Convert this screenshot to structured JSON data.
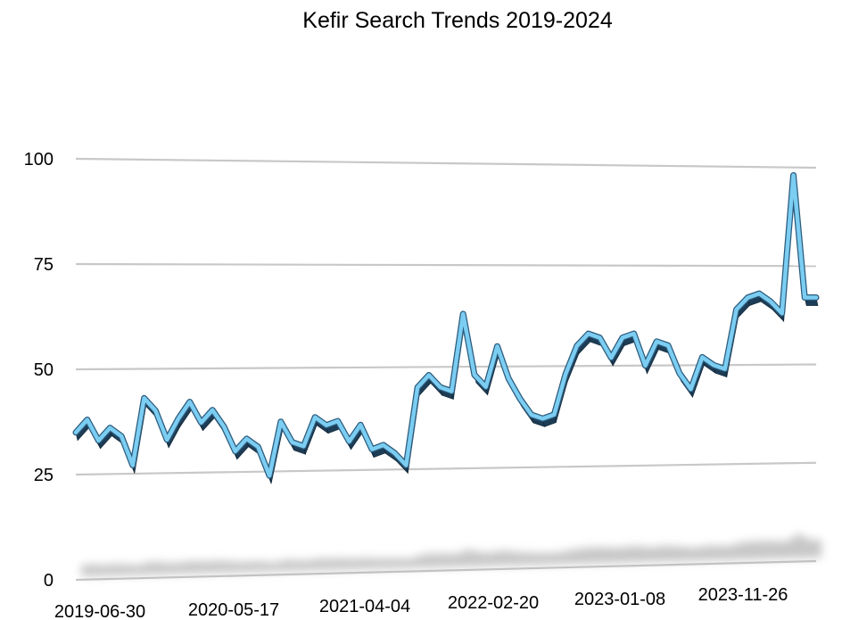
{
  "chart_data": {
    "type": "line",
    "title": "Kefir Search Trends 2019-2024",
    "xlabel": "",
    "ylabel": "",
    "x_tick_labels": [
      "2019-06-30",
      "2020-05-17",
      "2021-04-04",
      "2022-02-20",
      "2023-01-08",
      "2023-11-26"
    ],
    "y_tick_labels": [
      "0",
      "25",
      "50",
      "75",
      "100"
    ],
    "y_ticks": [
      0,
      25,
      50,
      75,
      100
    ],
    "ylim": [
      0,
      100
    ],
    "xlim": [
      "2019-06-30",
      "2024-06-23"
    ],
    "grid": true,
    "legend": "none",
    "style": "3d-ribbon",
    "series_color": "#7ccdf2",
    "series_side_color": "#1d3c55",
    "series": [
      {
        "x": [
          "2019-06-30",
          "2019-07-28",
          "2019-08-25",
          "2019-09-22",
          "2019-10-20",
          "2019-11-17",
          "2019-12-15",
          "2020-01-12",
          "2020-02-09",
          "2020-03-08",
          "2020-04-05",
          "2020-05-03",
          "2020-05-31",
          "2020-06-28",
          "2020-07-26",
          "2020-08-23",
          "2020-09-20",
          "2020-10-18",
          "2020-11-15",
          "2020-12-13",
          "2021-01-10",
          "2021-02-07",
          "2021-03-07",
          "2021-04-04",
          "2021-05-02",
          "2021-05-30",
          "2021-06-27",
          "2021-07-25",
          "2021-08-22",
          "2021-09-19",
          "2021-10-17",
          "2021-11-14",
          "2021-12-12",
          "2022-01-09",
          "2022-02-06",
          "2022-03-06",
          "2022-04-03",
          "2022-05-01",
          "2022-05-29",
          "2022-06-26",
          "2022-07-24",
          "2022-08-21",
          "2022-09-18",
          "2022-10-16",
          "2022-11-13",
          "2022-12-11",
          "2023-01-08",
          "2023-02-05",
          "2023-03-05",
          "2023-04-02",
          "2023-04-30",
          "2023-05-28",
          "2023-06-25",
          "2023-07-23",
          "2023-08-20",
          "2023-09-17",
          "2023-10-15",
          "2023-11-12",
          "2023-12-10",
          "2024-01-07",
          "2024-02-04",
          "2024-03-03",
          "2024-03-31",
          "2024-04-28",
          "2024-05-26",
          "2024-06-23"
        ],
        "y": [
          35,
          38,
          33,
          36,
          34,
          27,
          43,
          40,
          33,
          38,
          42,
          37,
          40,
          36,
          30,
          33,
          31,
          24,
          37,
          32,
          31,
          38,
          36,
          37,
          32,
          36,
          30,
          31,
          29,
          26,
          45,
          48,
          45,
          44,
          63,
          48,
          45,
          55,
          47,
          42,
          38,
          37,
          38,
          48,
          55,
          58,
          57,
          52,
          57,
          58,
          50,
          56,
          55,
          48,
          44,
          52,
          50,
          49,
          64,
          67,
          68,
          66,
          63,
          98,
          67,
          67
        ]
      }
    ]
  }
}
